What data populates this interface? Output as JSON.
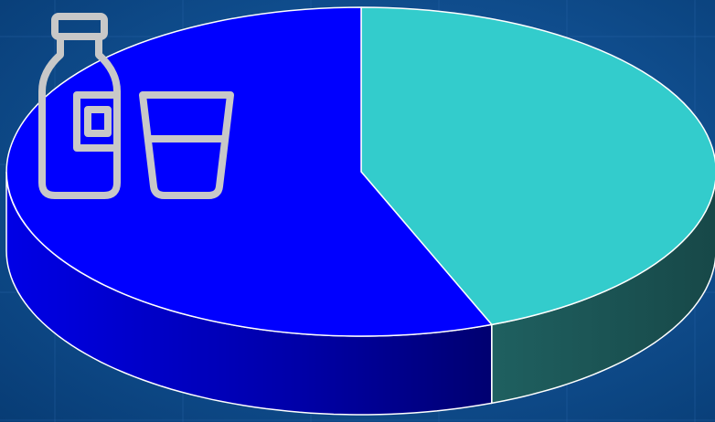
{
  "chart_data": {
    "type": "pie",
    "style": "3d",
    "legend": "none",
    "data_labels": "none",
    "slices": [
      {
        "color": "#33cccc",
        "side_color": "#1b5656",
        "value": 44
      },
      {
        "color": "#0000ff",
        "side_color": "#00008a",
        "value": 56
      }
    ]
  },
  "background": {
    "color": "#0a4a8c",
    "grid_color": "#2f6bb0"
  },
  "icons": [
    "milk-bottle-icon",
    "glass-icon"
  ]
}
